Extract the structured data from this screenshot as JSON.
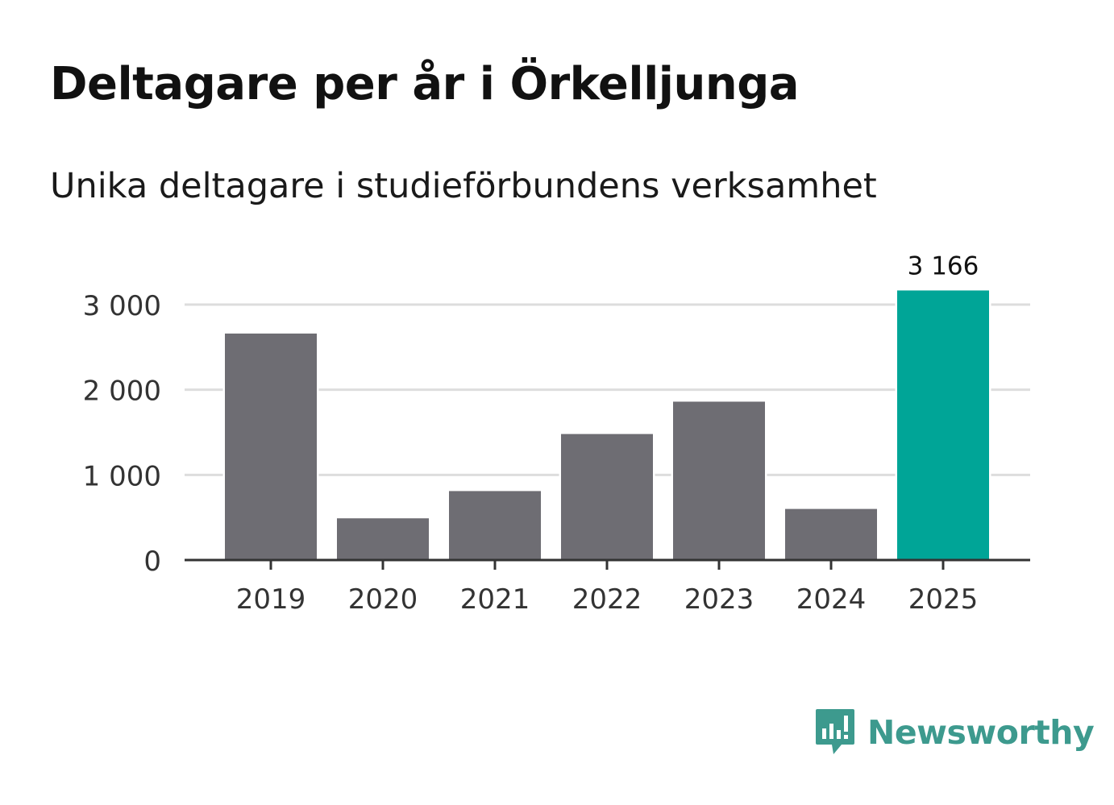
{
  "header": {
    "title": "Deltagare per år i Örkelljunga",
    "subtitle": "Unika deltagare i studieförbundens verksamhet"
  },
  "chart_data": {
    "type": "bar",
    "title": "Deltagare per år i Örkelljunga",
    "subtitle": "Unika deltagare i studieförbundens verksamhet",
    "categories": [
      "2019",
      "2020",
      "2021",
      "2022",
      "2023",
      "2024",
      "2025"
    ],
    "values": [
      2660,
      490,
      810,
      1480,
      1860,
      600,
      3166
    ],
    "highlight_index": 6,
    "highlight_label": "3 166",
    "ylim": [
      0,
      3000
    ],
    "yticks": [
      0,
      1000,
      2000,
      3000
    ],
    "ytick_labels": [
      "0",
      "1 000",
      "2 000",
      "3 000"
    ],
    "xlabel": "",
    "ylabel": "",
    "grid": true,
    "colors": {
      "bar": "#6e6d73",
      "highlight": "#00a597",
      "grid": "#dddddd",
      "axis": "#333333",
      "text": "#333333"
    }
  },
  "brand": {
    "name": "Newsworthy",
    "icon": "newsworthy-logo-icon",
    "color": "#3d9a8e"
  }
}
